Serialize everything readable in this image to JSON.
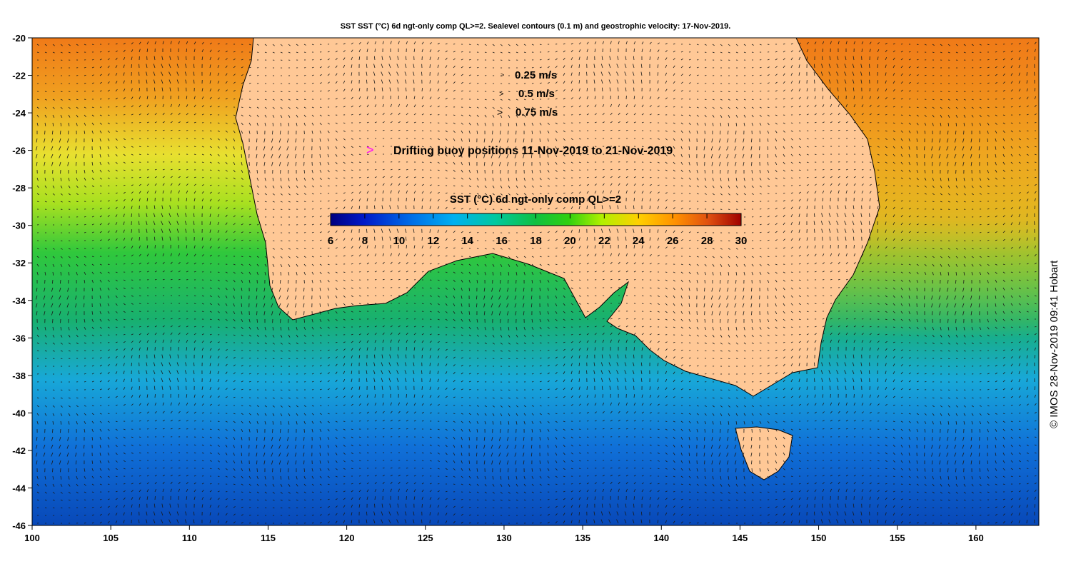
{
  "title": "SST SST (°C) 6d ngt-only comp QL>=2. Sealevel contours (0.1 m) and geostrophic velocity: 17-Nov-2019.",
  "map": {
    "lon_ticks": [
      "100",
      "105",
      "110",
      "115",
      "120",
      "125",
      "130",
      "135",
      "140",
      "145",
      "150",
      "155",
      "160"
    ],
    "lat_ticks": [
      "-20",
      "-22",
      "-24",
      "-26",
      "-28",
      "-30",
      "-32",
      "-34",
      "-36",
      "-38",
      "-40",
      "-42",
      "-44",
      "-46"
    ],
    "lon_range": [
      100,
      164
    ],
    "lat_range": [
      -46,
      -20
    ]
  },
  "legend": {
    "speed_items": [
      {
        "label": "0.25 m/s"
      },
      {
        "label": "0.5 m/s"
      },
      {
        "label": "0.75 m/s"
      }
    ],
    "buoy_label": "Drifting buoy positions 11-Nov-2019 to 21-Nov-2019",
    "buoy_color": "#ff00ff"
  },
  "colorbar": {
    "title": "SST (°C) 6d ngt-only comp QL>=2",
    "ticks": [
      "6",
      "8",
      "10",
      "12",
      "14",
      "16",
      "18",
      "20",
      "22",
      "24",
      "26",
      "28",
      "30"
    ],
    "range": [
      6,
      30
    ]
  },
  "credit": "© IMOS 28-Nov-2019 09:41 Hobart",
  "colors": {
    "land": "#ffc896",
    "ocean_warm": "#f08a1e",
    "ocean_mid": "#20c83c",
    "ocean_cold": "#1060d0"
  }
}
